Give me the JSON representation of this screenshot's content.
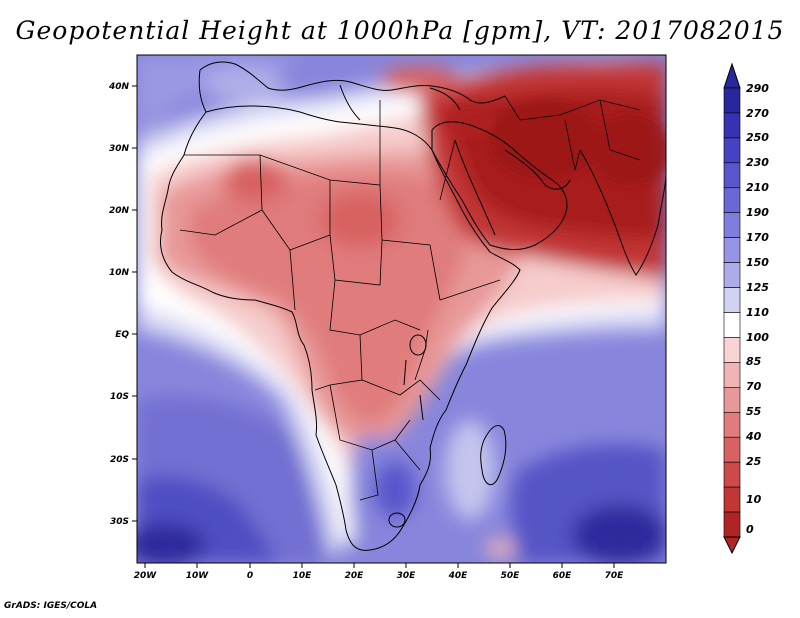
{
  "title": "Geopotential Height at 1000hPa [gpm], VT: 2017082015",
  "credit": "GrADS: IGES/COLA",
  "map": {
    "lat_labels": [
      "40N",
      "30N",
      "20N",
      "10N",
      "EQ",
      "10S",
      "20S",
      "30S"
    ],
    "lon_labels": [
      "20W",
      "10W",
      "0",
      "10E",
      "20E",
      "30E",
      "40E",
      "50E",
      "60E",
      "70E"
    ]
  },
  "colorbar": {
    "labels": [
      "290",
      "270",
      "250",
      "230",
      "210",
      "190",
      "170",
      "150",
      "125",
      "110",
      "100",
      "85",
      "70",
      "55",
      "40",
      "25",
      "10",
      "0"
    ],
    "colors": [
      "#29279e",
      "#3532b4",
      "#4543c4",
      "#5856cc",
      "#6a68d4",
      "#807edc",
      "#9694e4",
      "#adace8",
      "#d2d2f2",
      "#ffffff",
      "#f8d4d4",
      "#f0b4b4",
      "#e89898",
      "#e07c7c",
      "#d86262",
      "#ce4a4a",
      "#c23636",
      "#b02424"
    ]
  },
  "colors": {
    "deep_blue": "#2e2c9e",
    "deep_red": "#a81e1e",
    "ocean_mid": "#9a98e2"
  }
}
